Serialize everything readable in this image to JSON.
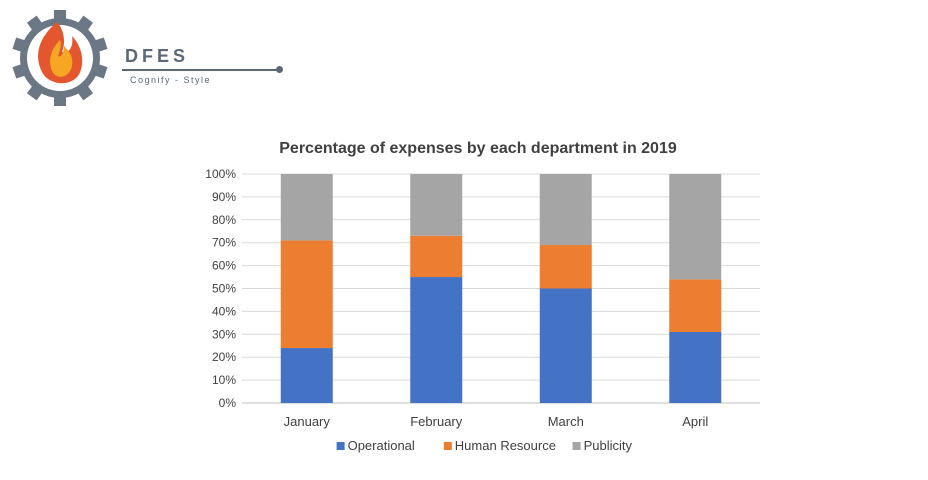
{
  "brand": {
    "name": "DFES",
    "tagline": "Cognify - Style",
    "icon": "gear-flame-icon",
    "colors": {
      "gear": "#6b7784",
      "flame_outer": "#e4572e",
      "flame_inner": "#f5a623"
    }
  },
  "chart_data": {
    "type": "bar",
    "stacked": true,
    "title": "Percentage of expenses by each department in 2019",
    "categories": [
      "January",
      "February",
      "March",
      "April"
    ],
    "series": [
      {
        "name": "Operational",
        "color": "#4472c4",
        "values": [
          24,
          55,
          50,
          31
        ]
      },
      {
        "name": "Human Resource",
        "color": "#ed7d31",
        "values": [
          47,
          18,
          19,
          23
        ]
      },
      {
        "name": "Publicity",
        "color": "#a5a5a5",
        "values": [
          29,
          27,
          31,
          46
        ]
      }
    ],
    "yticks": [
      "0%",
      "10%",
      "20%",
      "30%",
      "40%",
      "50%",
      "60%",
      "70%",
      "80%",
      "90%",
      "100%"
    ],
    "ylim": [
      0,
      100
    ],
    "grid": true,
    "legend_position": "bottom"
  }
}
